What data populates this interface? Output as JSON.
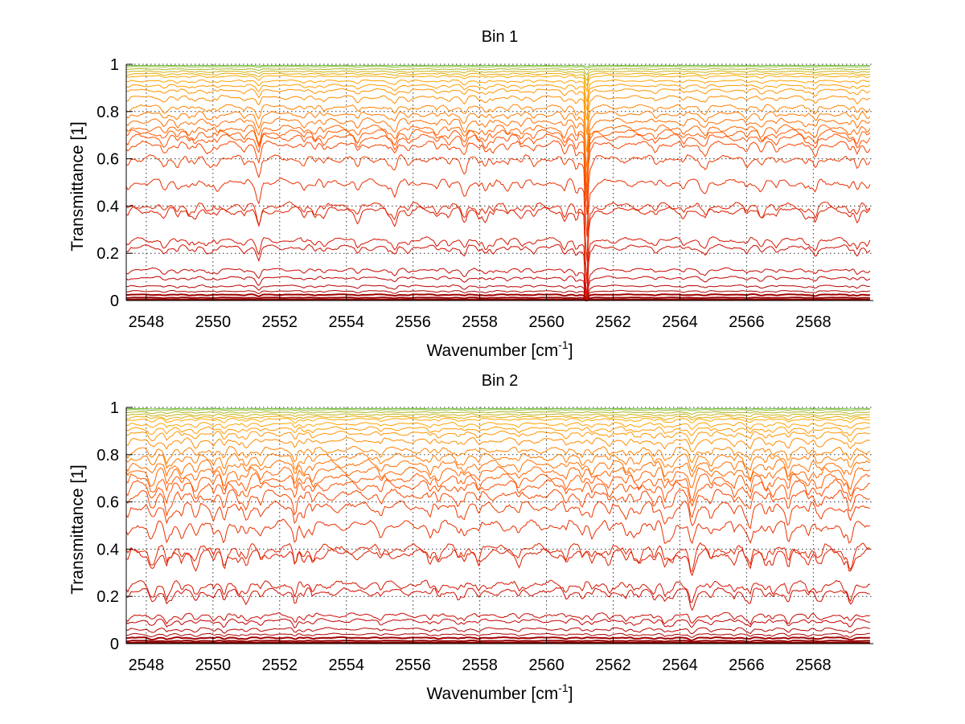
{
  "chart_data": [
    {
      "type": "line",
      "title": "Bin 1",
      "xlabel": "Wavenumber [cm",
      "xlabel_sup": "-1",
      "xlabel_end": "]",
      "ylabel": "Transmittance [1]",
      "xlim": [
        2547.4,
        2569.8
      ],
      "ylim": [
        0,
        1
      ],
      "x_ticks": [
        2548,
        2550,
        2552,
        2554,
        2556,
        2558,
        2560,
        2562,
        2564,
        2566,
        2568
      ],
      "y_ticks": [
        0,
        0.2,
        0.4,
        0.6,
        0.8,
        1
      ],
      "y_tick_labels": [
        "0",
        "0.2",
        "0.4",
        "0.6",
        "0.8",
        "1"
      ],
      "grid": true,
      "x_range": [
        2547.4,
        2569.7
      ],
      "series_levels": [
        0.004,
        0.012,
        0.025,
        0.04,
        0.062,
        0.097,
        0.13,
        0.225,
        0.255,
        0.38,
        0.4,
        0.5,
        0.6,
        0.66,
        0.69,
        0.71,
        0.73,
        0.76,
        0.79,
        0.82,
        0.86,
        0.89,
        0.91,
        0.93,
        0.95,
        0.96,
        0.97,
        0.98,
        0.99,
        0.995
      ],
      "colors": [
        "#8b0000",
        "#c00000",
        "#e02000",
        "#ff5500",
        "#ff8800",
        "#ffaa00",
        "#6fbf40"
      ],
      "features": [
        {
          "x": 2561.2,
          "depth": 0.35
        }
      ]
    },
    {
      "type": "line",
      "title": "Bin 2",
      "xlabel": "Wavenumber [cm",
      "xlabel_sup": "-1",
      "xlabel_end": "]",
      "ylabel": "Transmittance [1]",
      "xlim": [
        2547.4,
        2569.8
      ],
      "ylim": [
        0,
        1
      ],
      "x_ticks": [
        2548,
        2550,
        2552,
        2554,
        2556,
        2558,
        2560,
        2562,
        2564,
        2566,
        2568
      ],
      "y_ticks": [
        0,
        0.2,
        0.4,
        0.6,
        0.8,
        1
      ],
      "y_tick_labels": [
        "0",
        "0.2",
        "0.4",
        "0.6",
        "0.8",
        "1"
      ],
      "grid": true,
      "x_range": [
        2547.4,
        2569.7
      ],
      "series_levels": [
        0.004,
        0.012,
        0.025,
        0.04,
        0.062,
        0.097,
        0.12,
        0.22,
        0.25,
        0.38,
        0.4,
        0.5,
        0.58,
        0.63,
        0.67,
        0.7,
        0.73,
        0.76,
        0.79,
        0.82,
        0.86,
        0.89,
        0.91,
        0.93,
        0.95,
        0.96,
        0.97,
        0.98,
        0.99,
        0.995
      ],
      "colors": [
        "#8b0000",
        "#c00000",
        "#e02000",
        "#ff5500",
        "#ff8800",
        "#ffaa00",
        "#6fbf40"
      ],
      "features": []
    }
  ]
}
